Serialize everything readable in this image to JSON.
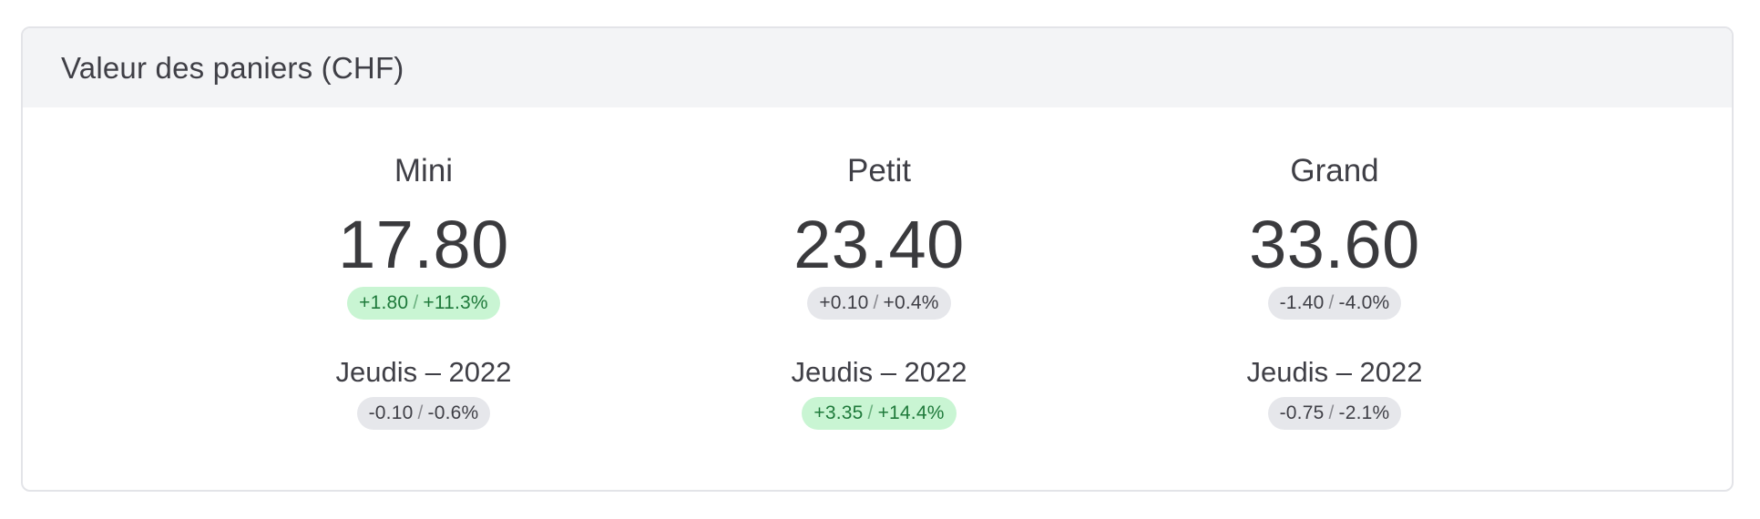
{
  "card": {
    "title": "Valeur des paniers (CHF)"
  },
  "columns": [
    {
      "name": "Mini",
      "value": "17.80",
      "change": {
        "abs": "+1.80",
        "pct": "+11.3%",
        "tone": "positive"
      },
      "sub_label": "Jeudis – 2022",
      "sub_change": {
        "abs": "-0.10",
        "pct": "-0.6%",
        "tone": "neutral"
      }
    },
    {
      "name": "Petit",
      "value": "23.40",
      "change": {
        "abs": "+0.10",
        "pct": "+0.4%",
        "tone": "neutral"
      },
      "sub_label": "Jeudis – 2022",
      "sub_change": {
        "abs": "+3.35",
        "pct": "+14.4%",
        "tone": "positive"
      }
    },
    {
      "name": "Grand",
      "value": "33.60",
      "change": {
        "abs": "-1.40",
        "pct": "-4.0%",
        "tone": "neutral"
      },
      "sub_label": "Jeudis – 2022",
      "sub_change": {
        "abs": "-0.75",
        "pct": "-2.1%",
        "tone": "neutral"
      }
    }
  ],
  "colors": {
    "positive_bg": "#c9f5d3",
    "positive_text": "#1f7a3b",
    "neutral_bg": "#e6e7eb",
    "neutral_text": "#3f3f46",
    "header_bg": "#f3f4f6"
  }
}
